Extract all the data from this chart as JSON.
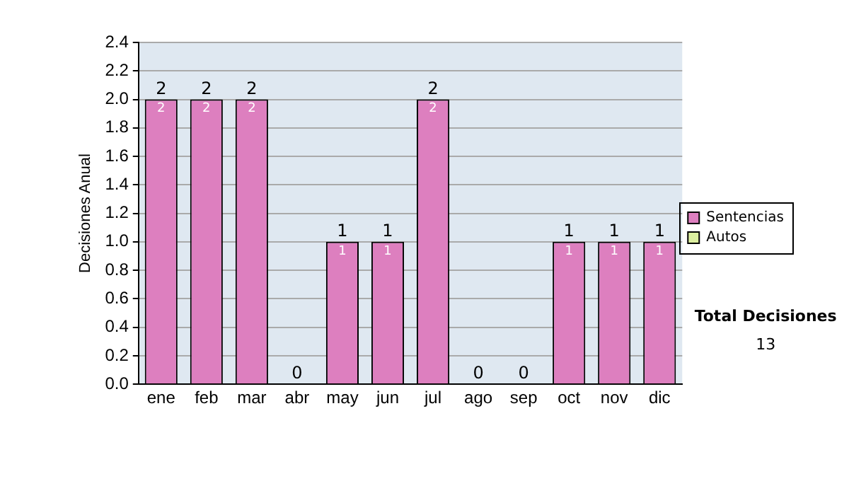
{
  "chart_data": {
    "type": "bar",
    "ylabel": "Decisiones Anual",
    "categories": [
      "ene",
      "feb",
      "mar",
      "abr",
      "may",
      "jun",
      "jul",
      "ago",
      "sep",
      "oct",
      "nov",
      "dic"
    ],
    "stacked": true,
    "series": [
      {
        "name": "Sentencias",
        "color": "#dd7fbf",
        "values": [
          2,
          2,
          2,
          0,
          1,
          1,
          2,
          0,
          0,
          1,
          1,
          1
        ],
        "value_labels": [
          "2",
          "2",
          "2",
          null,
          "1",
          "1",
          "2",
          null,
          null,
          "1",
          "1",
          "1"
        ]
      },
      {
        "name": "Autos",
        "color": "#dcefa0",
        "values": [
          0,
          0,
          0,
          0,
          0,
          0,
          0,
          0,
          0,
          0,
          0,
          0
        ]
      }
    ],
    "totals": [
      "2",
      "2",
      "2",
      "0",
      "1",
      "1",
      "2",
      "0",
      "0",
      "1",
      "1",
      "1"
    ],
    "ylim": [
      0,
      2.4
    ],
    "yticks": [
      {
        "value": 0,
        "label": "0.0"
      },
      0.2,
      0.4,
      0.6,
      0.8,
      {
        "value": 1,
        "label": "1.0"
      },
      1.2,
      1.4,
      1.6,
      1.8,
      {
        "value": 2,
        "label": "2.0"
      },
      2.2,
      2.4
    ],
    "grid": "y",
    "legend": "right",
    "annotations": [
      "Total Decisiones",
      "13"
    ]
  }
}
